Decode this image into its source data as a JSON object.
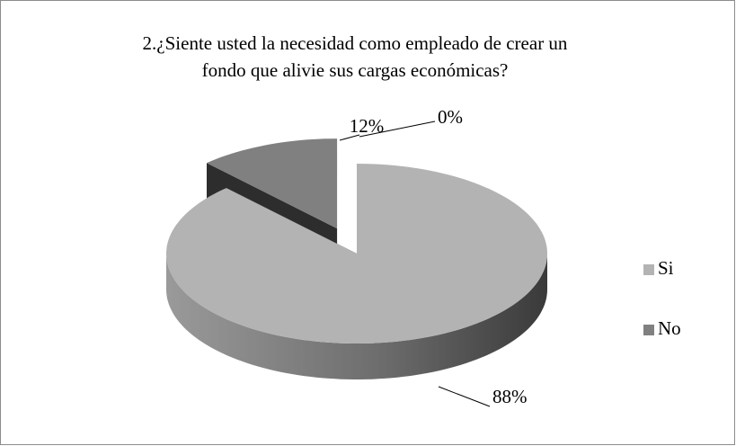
{
  "chart_data": {
    "type": "pie3d",
    "title": [
      "2.¿Siente usted la necesidad como empleado de crear un",
      "fondo que alivie sus cargas económicas?"
    ],
    "categories": [
      "Si",
      "No",
      null
    ],
    "values": [
      88,
      12,
      0
    ],
    "value_labels": [
      "88%",
      "12%",
      "0%"
    ],
    "colors": [
      "#b3b3b3",
      "#808080",
      "#404040"
    ],
    "exploded": [
      false,
      true,
      false
    ],
    "legend": "right"
  }
}
